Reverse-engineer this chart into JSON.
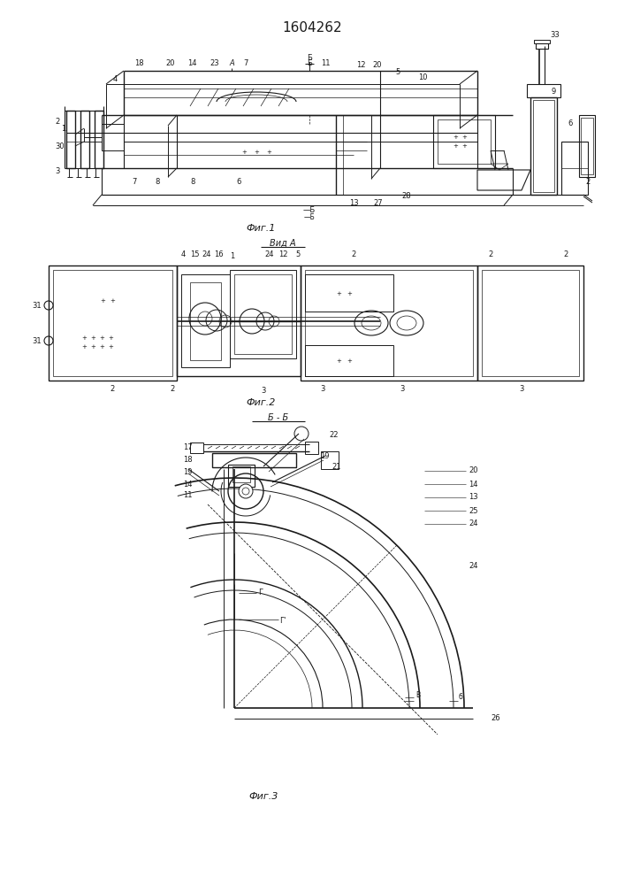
{
  "title": "1604262",
  "bg_color": "#ffffff",
  "line_color": "#1a1a1a",
  "fig1_label": "Фиг.1",
  "fig2_label": "Фиг.2",
  "fig3_label": "Фиг.3",
  "vid_a_label": "Вид A",
  "bb_label": "Б - Б"
}
